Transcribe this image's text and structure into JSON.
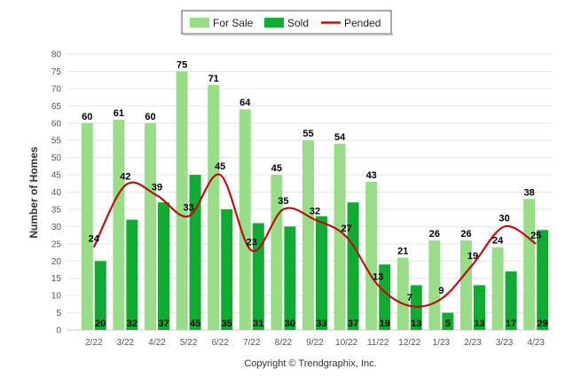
{
  "chart_data": {
    "type": "bar",
    "categories": [
      "2/22",
      "3/22",
      "4/22",
      "5/22",
      "6/22",
      "7/22",
      "8/22",
      "9/22",
      "10/22",
      "11/22",
      "12/22",
      "1/23",
      "2/23",
      "3/23",
      "4/23"
    ],
    "series": [
      {
        "name": "For Sale",
        "kind": "bar",
        "color": "#99dd88",
        "values": [
          60,
          61,
          60,
          75,
          71,
          64,
          45,
          55,
          54,
          43,
          21,
          26,
          26,
          24,
          38
        ]
      },
      {
        "name": "Sold",
        "kind": "bar",
        "color": "#11aa33",
        "values": [
          20,
          32,
          37,
          45,
          35,
          31,
          30,
          33,
          37,
          19,
          13,
          5,
          13,
          17,
          29
        ]
      },
      {
        "name": "Pended",
        "kind": "line",
        "color": "#bb1111",
        "values": [
          24,
          42,
          39,
          33,
          45,
          23,
          35,
          32,
          27,
          13,
          7,
          9,
          19,
          30,
          25
        ]
      }
    ],
    "ylabel": "Number of Homes",
    "ylim": [
      0,
      80
    ],
    "yticks": [
      0,
      5,
      10,
      15,
      20,
      25,
      30,
      35,
      40,
      45,
      50,
      55,
      60,
      65,
      70,
      75,
      80
    ],
    "grid": true,
    "legend_position": "top-center",
    "credit": "Copyright © Trendgraphix, Inc."
  }
}
